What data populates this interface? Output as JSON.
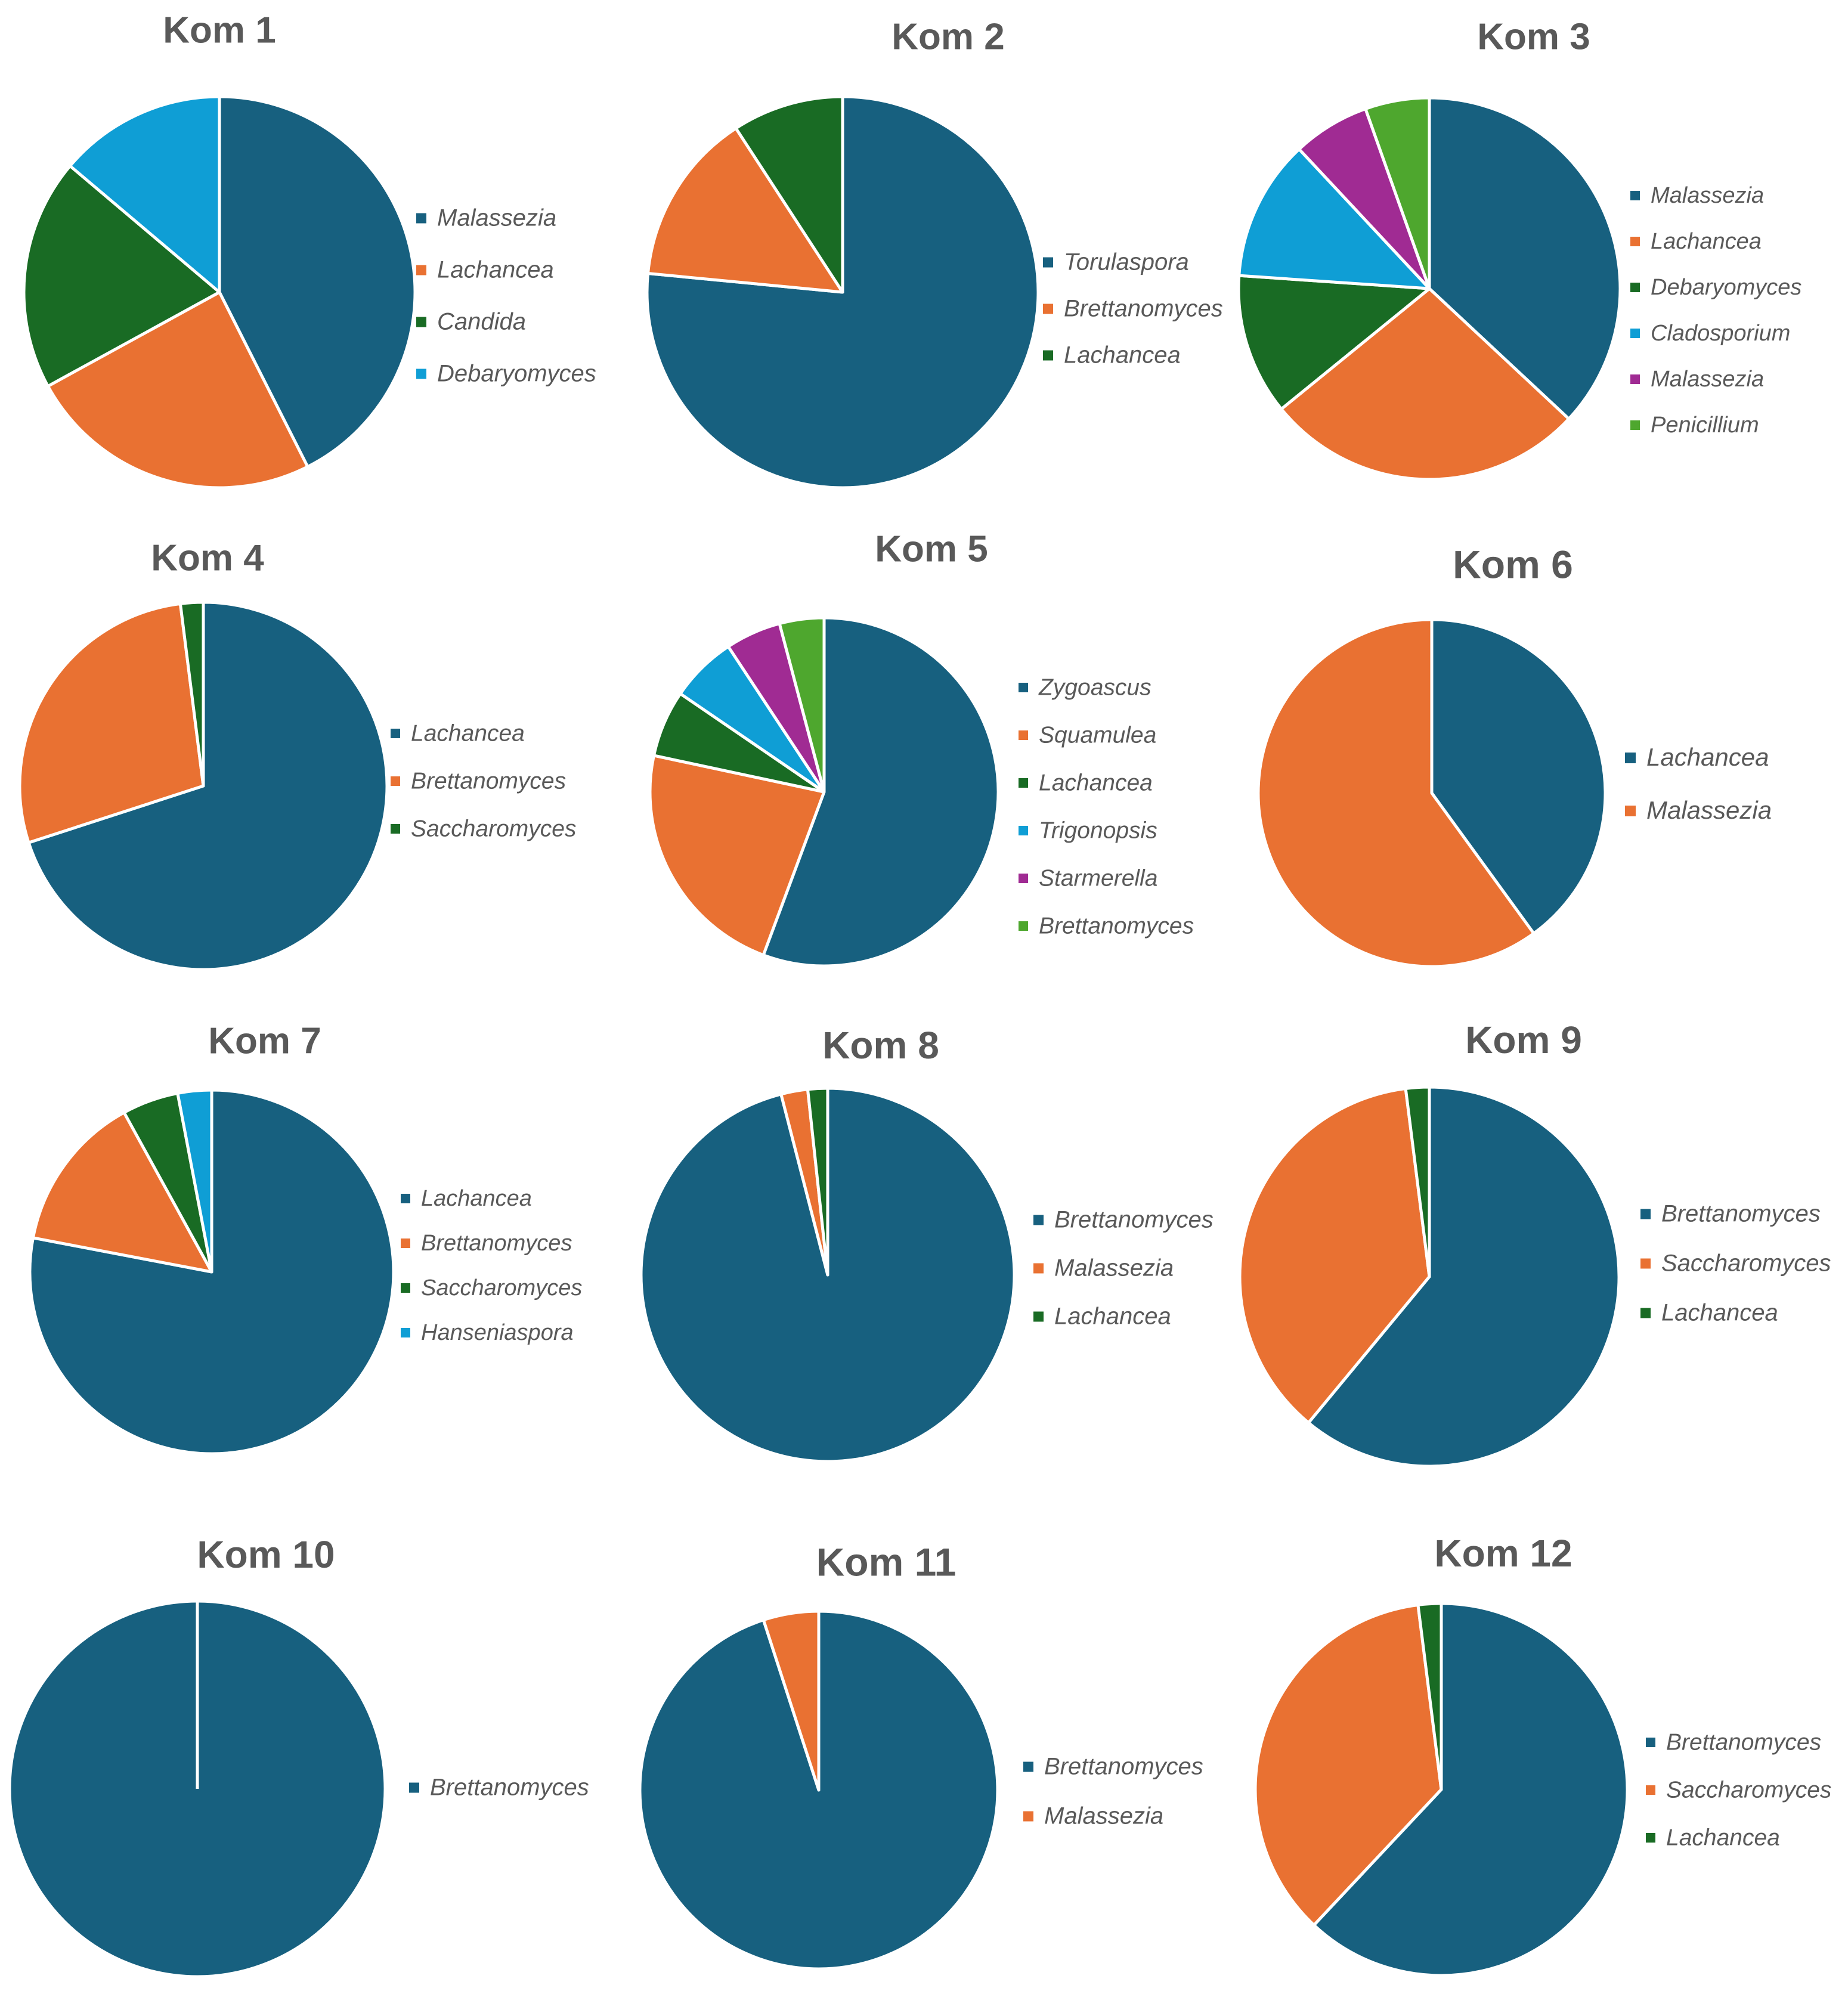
{
  "colors": {
    "series_1": "#17607f",
    "series_2": "#e97132",
    "series_3": "#196b24",
    "series_4": "#0f9ed5",
    "series_5": "#a02b93",
    "series_6": "#4ea72e",
    "title": "#595959",
    "legend_text": "#595959"
  },
  "chart_data": [
    {
      "type": "pie",
      "title": "Kom 1",
      "categories": [
        "Malassezia",
        "Lachancea",
        "Candida",
        "Debaryomyces"
      ],
      "values": [
        40,
        23,
        18,
        13
      ],
      "legend_position": "right"
    },
    {
      "type": "pie",
      "title": "Kom 2",
      "categories": [
        "Torulaspora",
        "Brettanomyces",
        "Lachancea"
      ],
      "values": [
        75,
        14,
        9
      ],
      "legend_position": "right"
    },
    {
      "type": "pie",
      "title": "Kom 3",
      "categories": [
        "Malassezia",
        "Lachancea",
        "Debaryomyces",
        "Cladosporium",
        "Malassezia",
        "Penicillium"
      ],
      "values": [
        34,
        25,
        11,
        11,
        6,
        5
      ],
      "legend_position": "right"
    },
    {
      "type": "pie",
      "title": "Kom 4",
      "categories": [
        "Lachancea",
        "Brettanomyces",
        "Saccharomyces"
      ],
      "values": [
        70,
        28,
        2
      ],
      "legend_position": "right"
    },
    {
      "type": "pie",
      "title": "Kom 5",
      "categories": [
        "Zygoascus",
        "Squamulea",
        "Lachancea",
        "Trigonopsis",
        "Starmerella",
        "Brettanomyces"
      ],
      "values": [
        54,
        22,
        6,
        6,
        5,
        4
      ],
      "legend_position": "right"
    },
    {
      "type": "pie",
      "title": "Kom 6",
      "categories": [
        "Lachancea",
        "Malassezia"
      ],
      "values": [
        40,
        60
      ],
      "legend_position": "right"
    },
    {
      "type": "pie",
      "title": "Kom 7",
      "categories": [
        "Lachancea",
        "Brettanomyces",
        "Saccharomyces",
        "Hanseniaspora"
      ],
      "values": [
        78,
        14,
        5,
        3
      ],
      "legend_position": "right"
    },
    {
      "type": "pie",
      "title": "Kom 8",
      "categories": [
        "Brettanomyces",
        "Malassezia",
        "Lachancea"
      ],
      "values": [
        95.5,
        2.3,
        1.7
      ],
      "legend_position": "right"
    },
    {
      "type": "pie",
      "title": "Kom 9",
      "categories": [
        "Brettanomyces",
        "Saccharomyces",
        "Lachancea"
      ],
      "values": [
        61,
        37,
        2
      ],
      "legend_position": "right"
    },
    {
      "type": "pie",
      "title": "Kom 10",
      "categories": [
        "Brettanomyces"
      ],
      "values": [
        100
      ],
      "legend_position": "right"
    },
    {
      "type": "pie",
      "title": "Kom 11",
      "categories": [
        "Brettanomyces",
        "Malassezia"
      ],
      "values": [
        95,
        5
      ],
      "legend_position": "right"
    },
    {
      "type": "pie",
      "title": "Kom 12",
      "categories": [
        "Brettanomyces",
        "Saccharomyces",
        "Lachancea"
      ],
      "values": [
        62,
        36,
        2
      ],
      "legend_position": "right"
    }
  ]
}
